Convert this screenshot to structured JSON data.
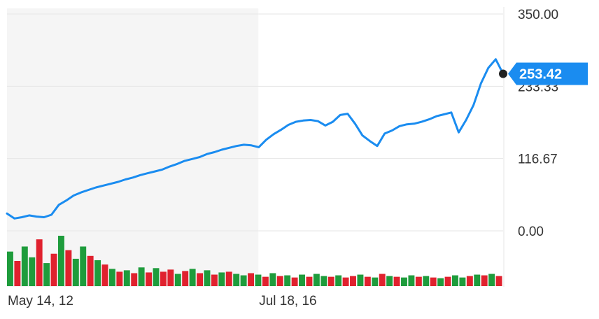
{
  "chart_data": {
    "type": "line",
    "title": "",
    "xlabel": "",
    "ylabel": "",
    "x_tick_labels": [
      "May 14, 12",
      "Jul 18, 16"
    ],
    "y_ticks": [
      0,
      116.67,
      233.33,
      350
    ],
    "y_tick_labels": [
      "0.00",
      "116.67",
      "233.33",
      "350.00"
    ],
    "ylim": [
      0,
      350
    ],
    "shaded_region": {
      "from_index": 0,
      "to_index": 33
    },
    "last_value_label": "253.42",
    "last_value": 253.42,
    "grid": true,
    "colors": {
      "line": "#1a8cf0",
      "badge": "#1a8cf0",
      "volume_up": "#1e9c3c",
      "volume_down": "#e0212e",
      "shade": "#f5f5f5",
      "grid": "#e6e6e6",
      "axis_text": "#333333"
    },
    "price": {
      "x": [
        0,
        1,
        2,
        3,
        4,
        5,
        6,
        7,
        8,
        9,
        10,
        11,
        12,
        13,
        14,
        15,
        16,
        17,
        18,
        19,
        20,
        21,
        22,
        23,
        24,
        25,
        26,
        27,
        28,
        29,
        30,
        31,
        32,
        33,
        34,
        35,
        36,
        37,
        38,
        39,
        40,
        41,
        42,
        43,
        44,
        45,
        46,
        47,
        48,
        49,
        50,
        51,
        52,
        53,
        54,
        55,
        56,
        57,
        58,
        59,
        60,
        61,
        62,
        63,
        64,
        65,
        66,
        67
      ],
      "values": [
        28,
        20,
        22,
        25,
        23,
        22,
        26,
        42,
        49,
        57,
        62,
        66,
        70,
        73,
        76,
        79,
        83,
        86,
        90,
        93,
        96,
        99,
        104,
        108,
        113,
        116,
        119,
        124,
        127,
        131,
        134,
        137,
        139,
        138,
        135,
        147,
        156,
        163,
        171,
        176,
        178,
        179,
        177,
        170,
        176,
        187,
        189,
        173,
        154,
        145,
        137,
        157,
        162,
        169,
        172,
        173,
        176,
        180,
        185,
        188,
        191,
        159,
        179,
        203,
        238,
        263,
        277,
        253.42
      ]
    },
    "volume": {
      "values": [
        4.8,
        3.5,
        5.5,
        4.0,
        6.5,
        3.2,
        4.5,
        7.0,
        5.0,
        3.8,
        5.5,
        4.2,
        3.6,
        3.0,
        2.4,
        2.0,
        2.2,
        1.8,
        2.6,
        1.9,
        2.5,
        2.0,
        2.3,
        1.7,
        2.1,
        2.4,
        1.8,
        2.2,
        1.6,
        1.9,
        2.0,
        1.7,
        1.5,
        1.8,
        1.6,
        1.3,
        1.8,
        1.4,
        1.5,
        1.2,
        1.6,
        1.3,
        1.7,
        1.4,
        1.3,
        1.5,
        1.2,
        1.4,
        1.6,
        1.3,
        1.2,
        1.7,
        1.4,
        1.3,
        1.2,
        1.5,
        1.3,
        1.4,
        1.2,
        1.1,
        1.3,
        1.5,
        1.2,
        1.4,
        1.6,
        1.5,
        1.7,
        1.4
      ],
      "up": [
        true,
        false,
        true,
        true,
        false,
        true,
        false,
        true,
        false,
        true,
        true,
        false,
        true,
        false,
        true,
        false,
        true,
        false,
        true,
        false,
        true,
        false,
        false,
        true,
        false,
        true,
        false,
        true,
        false,
        true,
        false,
        true,
        true,
        false,
        true,
        false,
        true,
        false,
        true,
        false,
        true,
        false,
        true,
        true,
        false,
        true,
        false,
        false,
        true,
        false,
        true,
        false,
        true,
        false,
        true,
        true,
        false,
        true,
        false,
        true,
        false,
        true,
        true,
        false,
        true,
        false,
        true,
        false
      ]
    }
  }
}
